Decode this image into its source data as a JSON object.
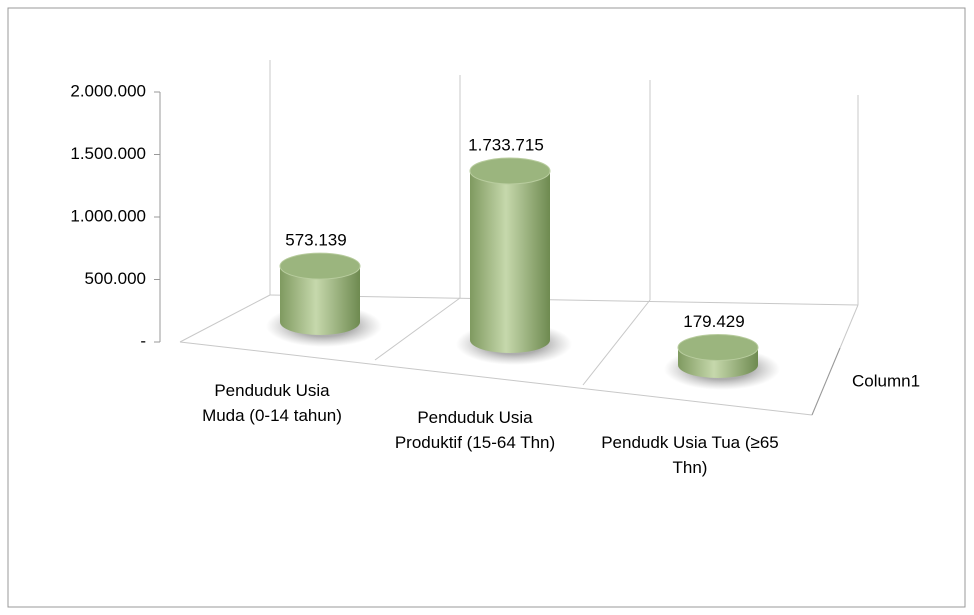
{
  "chart_data": {
    "type": "bar3d",
    "categories": [
      "Penduduk Usia Muda (0-14 tahun)",
      "Penduduk Usia Produktif (15-64 Thn)",
      "Pendudk Usia Tua (≥65 Thn)"
    ],
    "series": [
      {
        "name": "Column1",
        "color": "#9bb57e",
        "values": [
          573139,
          1733715,
          179429
        ],
        "value_labels": [
          "573.139",
          "1.733.715",
          "179.429"
        ]
      }
    ],
    "ylim": [
      0,
      2000000
    ],
    "yticks": [
      {
        "value": 0,
        "label": "-"
      },
      {
        "value": 500000,
        "label": "500.000"
      },
      {
        "value": 1000000,
        "label": "1.000.000"
      },
      {
        "value": 1500000,
        "label": "1.500.000"
      },
      {
        "value": 2000000,
        "label": "2.000.000"
      }
    ]
  }
}
